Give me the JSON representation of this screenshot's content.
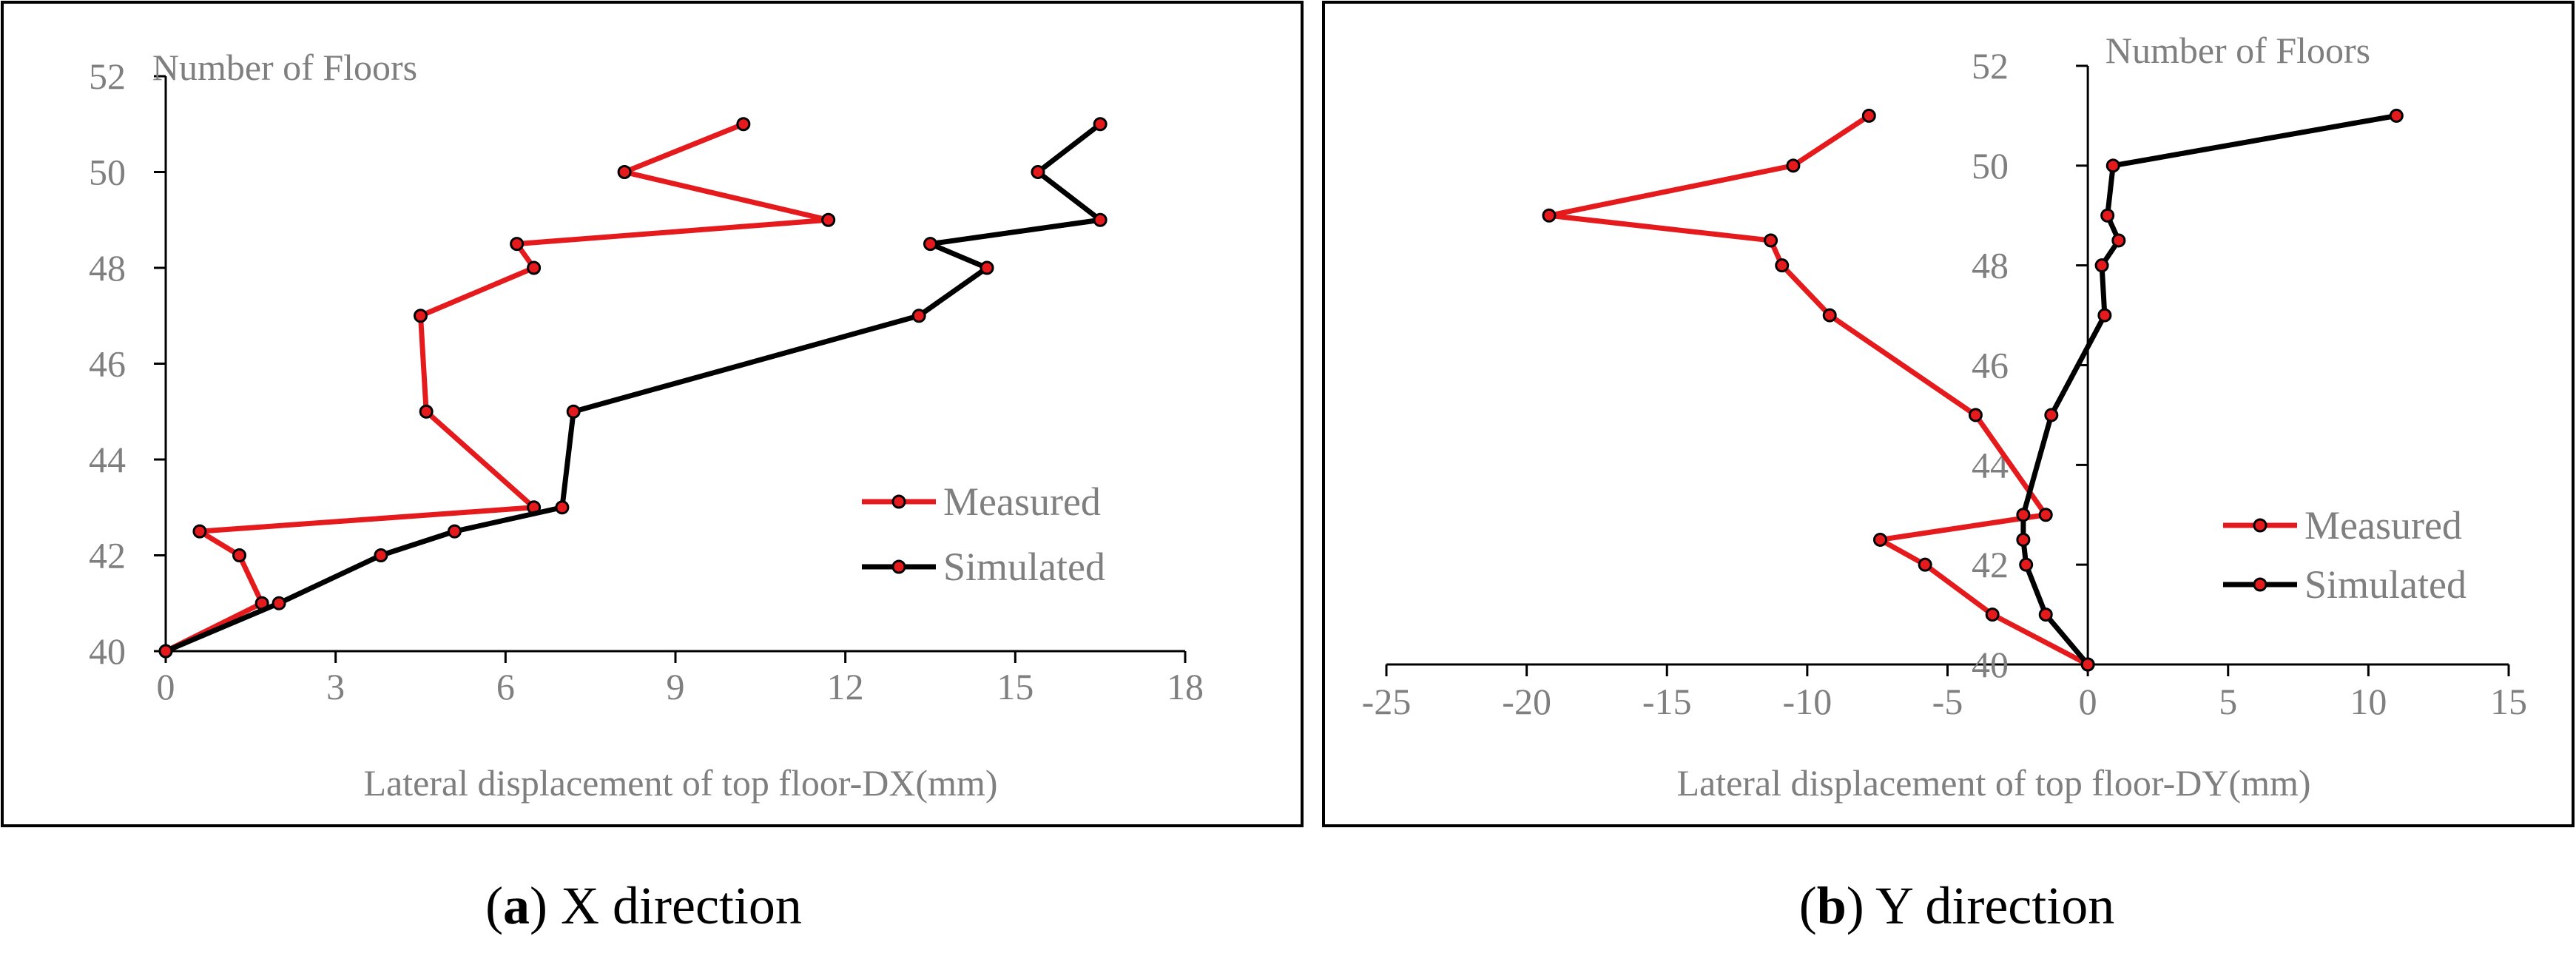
{
  "chart_data": [
    {
      "type": "line",
      "title": "",
      "xlabel": "Lateral displacement of top floor-DX(mm)",
      "ylabel": "Number of Floors",
      "xlim": [
        0,
        18
      ],
      "ylim": [
        40,
        52
      ],
      "xticks": [
        0,
        3,
        6,
        9,
        12,
        15,
        18
      ],
      "yticks": [
        40,
        42,
        44,
        46,
        48,
        50,
        52
      ],
      "legend_position": "right",
      "caption_tag": "a",
      "caption_text": " X direction",
      "series": [
        {
          "name": "Measured",
          "color": "#e41a1c",
          "x": [
            10.2,
            8.1,
            11.7,
            6.2,
            6.5,
            4.5,
            4.6,
            6.5,
            0.6,
            1.3,
            1.7,
            0.0
          ],
          "y": [
            51,
            50,
            49,
            48.5,
            48,
            47,
            45,
            43,
            42.5,
            42,
            41,
            40
          ]
        },
        {
          "name": "Simulated",
          "color": "#000000",
          "x": [
            16.5,
            15.4,
            16.5,
            13.5,
            14.5,
            13.3,
            7.2,
            7.0,
            5.1,
            3.8,
            2.0,
            0.0
          ],
          "y": [
            51,
            50,
            49,
            48.5,
            48,
            47,
            45,
            43,
            42.5,
            42,
            41,
            40
          ]
        }
      ]
    },
    {
      "type": "line",
      "title": "",
      "xlabel": "Lateral displacement of top floor-DY(mm)",
      "ylabel": "Number of Floors",
      "xlim": [
        -25,
        15
      ],
      "ylim": [
        40,
        52
      ],
      "xticks": [
        -25,
        -20,
        -15,
        -10,
        -5,
        0,
        5,
        10,
        15
      ],
      "yticks": [
        40,
        42,
        44,
        46,
        48,
        50,
        52
      ],
      "legend_position": "right",
      "caption_tag": "b",
      "caption_text": " Y direction",
      "series": [
        {
          "name": "Measured",
          "color": "#e41a1c",
          "x": [
            -7.8,
            -10.5,
            -19.2,
            -11.3,
            -10.9,
            -9.2,
            -4.0,
            -1.5,
            -7.4,
            -5.8,
            -3.4,
            0.0
          ],
          "y": [
            51,
            50,
            49,
            48.5,
            48,
            47,
            45,
            43,
            42.5,
            42,
            41,
            40
          ]
        },
        {
          "name": "Simulated",
          "color": "#000000",
          "x": [
            11.0,
            0.9,
            0.7,
            1.1,
            0.5,
            0.6,
            -1.3,
            -2.3,
            -2.3,
            -2.2,
            -1.5,
            0.0
          ],
          "y": [
            51,
            50,
            49,
            48.5,
            48,
            47,
            45,
            43,
            42.5,
            42,
            41,
            40
          ]
        }
      ]
    }
  ]
}
